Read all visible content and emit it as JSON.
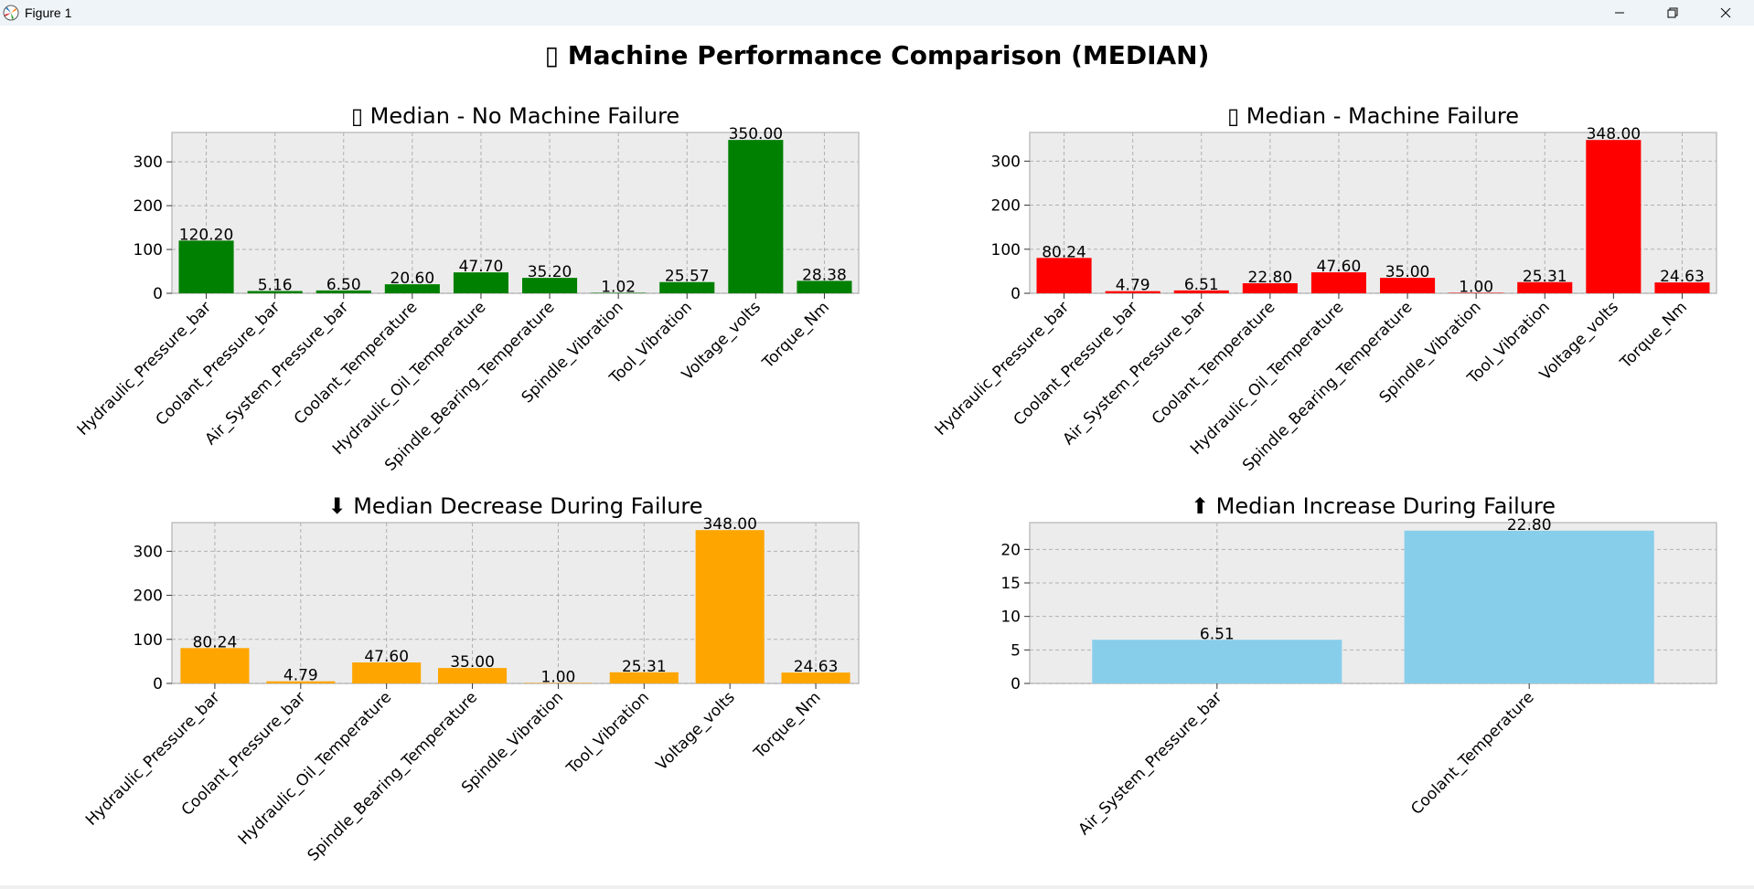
{
  "window": {
    "title": "Figure 1",
    "minimize_icon": "minimize-icon",
    "maximize_icon": "restore-icon",
    "close_icon": "close-icon"
  },
  "figure": {
    "suptitle": "▯ Machine Performance Comparison (MEDIAN)"
  },
  "chart_data": [
    {
      "type": "bar",
      "title": "▯ Median - No Machine Failure",
      "categories": [
        "Hydraulic_Pressure_bar",
        "Coolant_Pressure_bar",
        "Air_System_Pressure_bar",
        "Coolant_Temperature",
        "Hydraulic_Oil_Temperature",
        "Spindle_Bearing_Temperature",
        "Spindle_Vibration",
        "Tool_Vibration",
        "Voltage_volts",
        "Torque_Nm"
      ],
      "values": [
        120.2,
        5.16,
        6.5,
        20.6,
        47.7,
        35.2,
        1.02,
        25.57,
        350.0,
        28.38
      ],
      "data_labels": [
        "120.20",
        "5.16",
        "6.50",
        "20.60",
        "47.70",
        "35.20",
        "1.02",
        "25.57",
        "350.00",
        "28.38"
      ],
      "color": "#008000",
      "ylim": [
        0,
        367
      ],
      "yticks": [
        0,
        100,
        200,
        300
      ],
      "grid": true,
      "xlabel": "",
      "ylabel": ""
    },
    {
      "type": "bar",
      "title": "▯ Median - Machine Failure",
      "categories": [
        "Hydraulic_Pressure_bar",
        "Coolant_Pressure_bar",
        "Air_System_Pressure_bar",
        "Coolant_Temperature",
        "Hydraulic_Oil_Temperature",
        "Spindle_Bearing_Temperature",
        "Spindle_Vibration",
        "Tool_Vibration",
        "Voltage_volts",
        "Torque_Nm"
      ],
      "values": [
        80.24,
        4.79,
        6.51,
        22.8,
        47.6,
        35.0,
        1.0,
        25.31,
        348.0,
        24.63
      ],
      "data_labels": [
        "80.24",
        "4.79",
        "6.51",
        "22.80",
        "47.60",
        "35.00",
        "1.00",
        "25.31",
        "348.00",
        "24.63"
      ],
      "color": "#ff0000",
      "ylim": [
        0,
        365
      ],
      "yticks": [
        0,
        100,
        200,
        300
      ],
      "grid": true,
      "xlabel": "",
      "ylabel": ""
    },
    {
      "type": "bar",
      "title": "⬇ Median Decrease During Failure",
      "categories": [
        "Hydraulic_Pressure_bar",
        "Coolant_Pressure_bar",
        "Hydraulic_Oil_Temperature",
        "Spindle_Bearing_Temperature",
        "Spindle_Vibration",
        "Tool_Vibration",
        "Voltage_volts",
        "Torque_Nm"
      ],
      "values": [
        80.24,
        4.79,
        47.6,
        35.0,
        1.0,
        25.31,
        348.0,
        24.63
      ],
      "data_labels": [
        "80.24",
        "4.79",
        "47.60",
        "35.00",
        "1.00",
        "25.31",
        "348.00",
        "24.63"
      ],
      "color": "#ffa500",
      "ylim": [
        0,
        365
      ],
      "yticks": [
        0,
        100,
        200,
        300
      ],
      "grid": true,
      "xlabel": "",
      "ylabel": ""
    },
    {
      "type": "bar",
      "title": "⬆ Median Increase During Failure",
      "categories": [
        "Air_System_Pressure_bar",
        "Coolant_Temperature"
      ],
      "values": [
        6.51,
        22.8
      ],
      "data_labels": [
        "6.51",
        "22.80"
      ],
      "color": "#87ceeb",
      "ylim": [
        0,
        24
      ],
      "yticks": [
        0,
        5,
        10,
        15,
        20
      ],
      "grid": true,
      "xlabel": "",
      "ylabel": ""
    }
  ]
}
